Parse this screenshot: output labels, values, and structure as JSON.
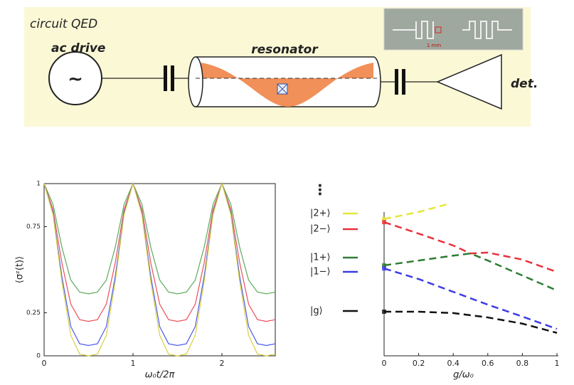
{
  "diagram": {
    "title": "circuit QED",
    "source_label": "ac drive",
    "source_symbol": "~",
    "resonator_label": "resonator",
    "detector_label": "det.",
    "inset_scale": "1 mm"
  },
  "chart_data": [
    {
      "type": "line",
      "xlabel": "ω₀t/2π",
      "ylabel": "⟨σᶻ(t)⟩",
      "x": [
        0,
        0.1,
        0.2,
        0.3,
        0.4,
        0.5,
        0.6,
        0.7,
        0.8,
        0.9,
        1,
        1.1,
        1.2,
        1.3,
        1.4,
        1.5,
        1.6,
        1.7,
        1.8,
        1.9,
        2,
        2.1,
        2.2,
        2.3,
        2.4,
        2.5,
        2.6
      ],
      "xlim": [
        0,
        2.6
      ],
      "xticks": [
        0,
        1,
        2
      ],
      "ylim": [
        0,
        1
      ],
      "yticks": [
        0,
        0.25,
        0.75,
        1
      ],
      "grid": false,
      "series": [
        {
          "color": "#5aaa5a",
          "values": [
            1,
            0.88,
            0.63,
            0.44,
            0.37,
            0.36,
            0.37,
            0.44,
            0.63,
            0.88,
            1,
            0.88,
            0.63,
            0.44,
            0.37,
            0.36,
            0.37,
            0.44,
            0.63,
            0.88,
            1,
            0.88,
            0.63,
            0.44,
            0.37,
            0.36,
            0.37
          ]
        },
        {
          "color": "#e8505a",
          "values": [
            1,
            0.85,
            0.54,
            0.3,
            0.21,
            0.2,
            0.21,
            0.3,
            0.54,
            0.85,
            1,
            0.85,
            0.54,
            0.3,
            0.21,
            0.2,
            0.21,
            0.3,
            0.54,
            0.85,
            1,
            0.85,
            0.54,
            0.3,
            0.21,
            0.2,
            0.21
          ]
        },
        {
          "color": "#4a5ae8",
          "values": [
            1,
            0.83,
            0.46,
            0.17,
            0.07,
            0.06,
            0.07,
            0.17,
            0.46,
            0.83,
            1,
            0.83,
            0.46,
            0.17,
            0.07,
            0.06,
            0.07,
            0.17,
            0.46,
            0.83,
            1,
            0.83,
            0.46,
            0.17,
            0.07,
            0.06,
            0.07
          ]
        },
        {
          "color": "#d8d040",
          "values": [
            1,
            0.82,
            0.43,
            0.12,
            0.01,
            0,
            0.01,
            0.12,
            0.43,
            0.82,
            1,
            0.82,
            0.43,
            0.12,
            0.01,
            0,
            0.01,
            0.12,
            0.43,
            0.82,
            1,
            0.82,
            0.43,
            0.12,
            0.01,
            0,
            0.01
          ]
        }
      ]
    },
    {
      "type": "line",
      "xlabel": "g/ω₀",
      "annotations": [
        "⋮"
      ],
      "xlim": [
        0,
        1
      ],
      "xticks": [
        0,
        0.2,
        0.4,
        0.6,
        0.8,
        1
      ],
      "ylim": [
        -1,
        2.5
      ],
      "dashed": true,
      "series": [
        {
          "name": "|2+⟩",
          "color": "#e6e63c",
          "x": [
            0,
            0.2,
            0.37
          ],
          "values": [
            2.1,
            2.26,
            2.44
          ]
        },
        {
          "name": "|2−⟩",
          "color": "#e8323c",
          "x": [
            0,
            0.2,
            0.4,
            0.5,
            0.6,
            0.8,
            1
          ],
          "values": [
            2.03,
            1.77,
            1.5,
            1.32,
            1.34,
            1.18,
            0.9
          ]
        },
        {
          "name": "|1+⟩",
          "color": "#2e7d32",
          "x": [
            0,
            0.2,
            0.4,
            0.5,
            0.6,
            0.8,
            1
          ],
          "values": [
            1.05,
            1.16,
            1.27,
            1.32,
            1.16,
            0.82,
            0.48
          ]
        },
        {
          "name": "|1−⟩",
          "color": "#3c3ce6",
          "x": [
            0,
            0.2,
            0.4,
            0.6,
            0.8,
            1
          ],
          "values": [
            0.98,
            0.74,
            0.45,
            0.16,
            -0.11,
            -0.39
          ]
        },
        {
          "name": "|g⟩",
          "color": "#111111",
          "x": [
            0,
            0.2,
            0.4,
            0.6,
            0.8,
            1
          ],
          "values": [
            0,
            0,
            -0.03,
            -0.13,
            -0.27,
            -0.48
          ]
        }
      ]
    }
  ]
}
